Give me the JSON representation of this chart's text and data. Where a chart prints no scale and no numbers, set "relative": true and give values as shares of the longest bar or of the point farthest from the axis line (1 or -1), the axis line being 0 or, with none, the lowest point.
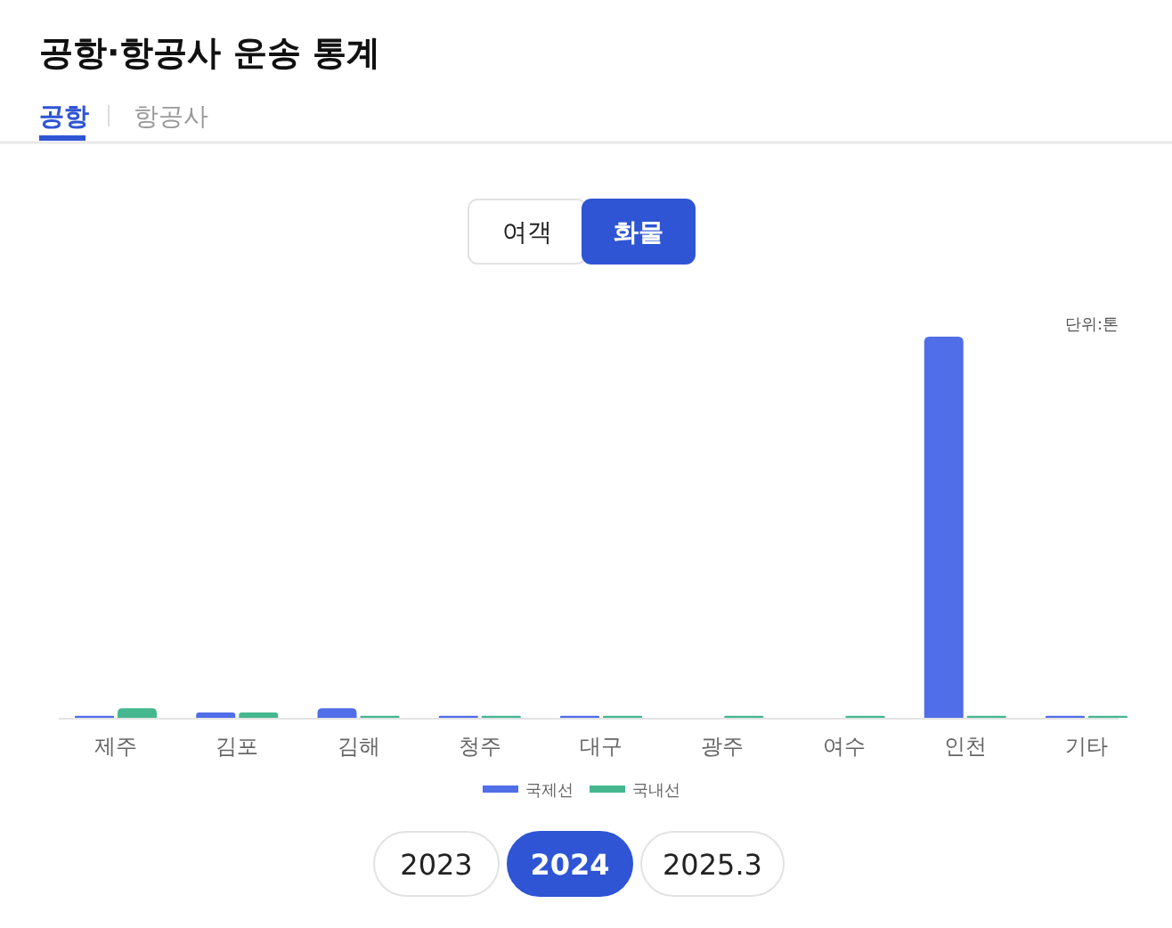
{
  "chart_data": {
    "type": "bar",
    "title": "공항·항공사 운송 통계",
    "categories": [
      "제주",
      "김포",
      "김해",
      "청주",
      "대구",
      "광주",
      "여수",
      "인천",
      "기타"
    ],
    "relative": true,
    "series": [
      {
        "name": "국제선",
        "color": "#4f6ee8",
        "values": [
          0.005,
          0.014,
          0.025,
          0.005,
          0.005,
          null,
          null,
          1,
          0.005
        ]
      },
      {
        "name": "국내선",
        "color": "#45b78f",
        "values": [
          0.025,
          0.014,
          0.005,
          0.005,
          0.005,
          0.005,
          0.005,
          0.005,
          0.005
        ]
      }
    ],
    "legend": "bottom",
    "annotations": [
      "공항",
      "항공사",
      "여객",
      "화물",
      "단위:톤",
      "2023",
      "2024",
      "2025.3"
    ]
  }
}
